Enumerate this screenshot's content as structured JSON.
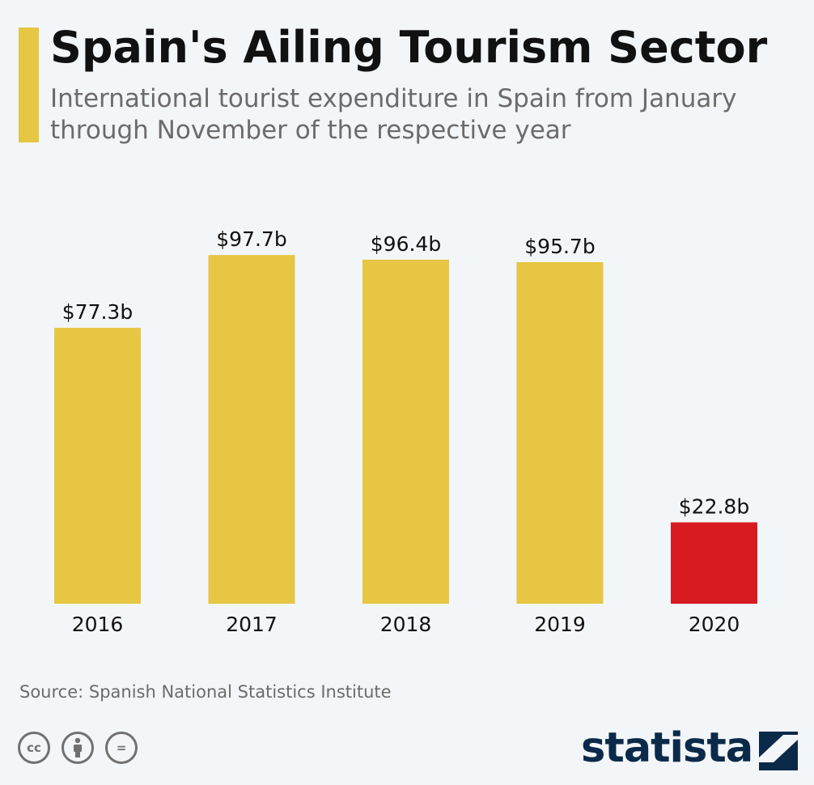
{
  "header": {
    "title": "Spain's Ailing Tourism Sector",
    "subtitle": "International tourist expenditure in Spain from January through November of the respective year"
  },
  "chart_data": {
    "type": "bar",
    "title": "Spain's Ailing Tourism Sector",
    "subtitle": "International tourist expenditure in Spain from January through November of the respective year",
    "categories": [
      "2016",
      "2017",
      "2018",
      "2019",
      "2020"
    ],
    "values": [
      77.3,
      97.7,
      96.4,
      95.7,
      22.8
    ],
    "data_labels": [
      "$77.3b",
      "$97.7b",
      "$96.4b",
      "$95.7b",
      "$22.8b"
    ],
    "colors": [
      "#e6c643",
      "#e6c643",
      "#e6c643",
      "#e6c643",
      "#d81b21"
    ],
    "ylim": [
      0,
      100
    ],
    "grid": false,
    "legend": "none"
  },
  "footer": {
    "source": "Source: Spanish National Statistics Institute",
    "license_icons": [
      "cc-icon",
      "attribution-icon",
      "no-derivatives-icon"
    ],
    "license_glyphs": [
      "cc",
      "",
      "="
    ],
    "brand": "statista"
  }
}
